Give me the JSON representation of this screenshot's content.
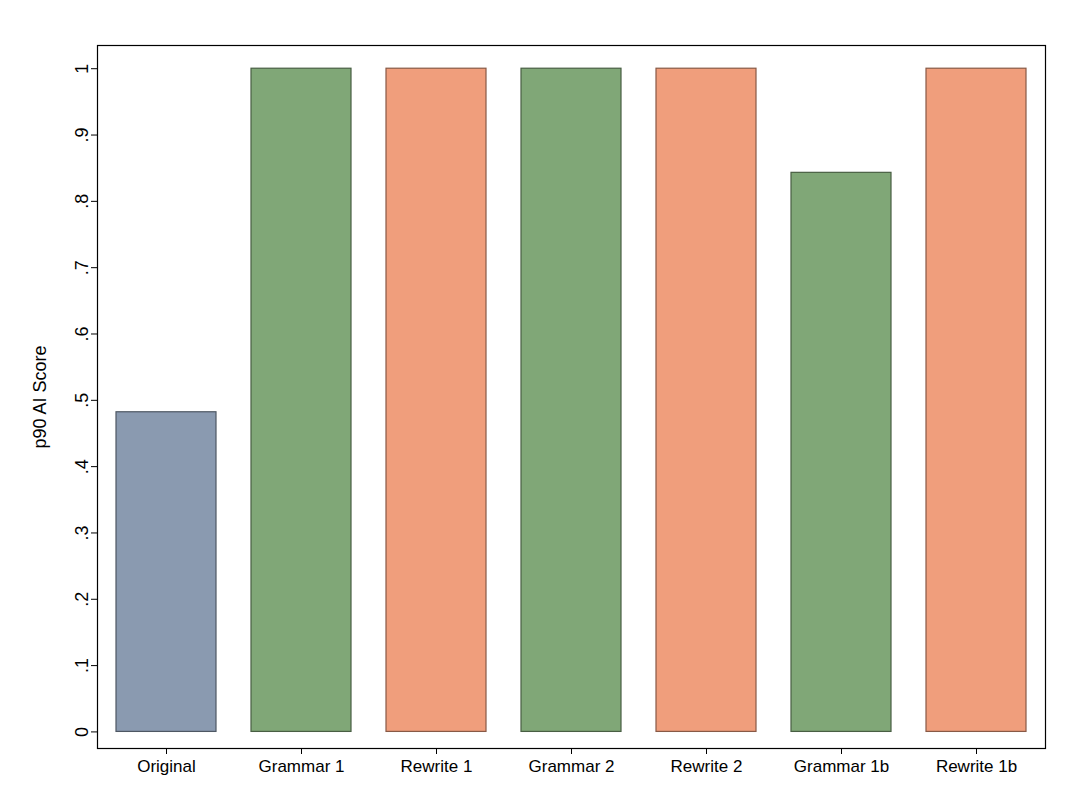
{
  "chart_data": {
    "type": "bar",
    "categories": [
      "Original",
      "Grammar 1",
      "Rewrite 1",
      "Grammar 2",
      "Rewrite 2",
      "Grammar 1b",
      "Rewrite 1b"
    ],
    "values": [
      0.482,
      1,
      1,
      1,
      1,
      0.843,
      1
    ],
    "colors": [
      "#8a9ab0",
      "#80a777",
      "#f09e7c",
      "#80a777",
      "#f09e7c",
      "#80a777",
      "#f09e7c"
    ],
    "y_label": "p90 AI Score",
    "ylim": [
      -0.025,
      1.035
    ],
    "yticks": [
      0,
      {
        "value": 0.1,
        "label": ".1"
      },
      {
        "value": 0.2,
        "label": ".2"
      },
      {
        "value": 0.3,
        "label": ".3"
      },
      {
        "value": 0.4,
        "label": ".4"
      },
      {
        "value": 0.5,
        "label": ".5"
      },
      {
        "value": 0.6,
        "label": ".6"
      },
      {
        "value": 0.7,
        "label": ".7"
      },
      {
        "value": 0.8,
        "label": ".8"
      },
      {
        "value": 0.9,
        "label": ".9"
      },
      1
    ],
    "grid": false
  }
}
